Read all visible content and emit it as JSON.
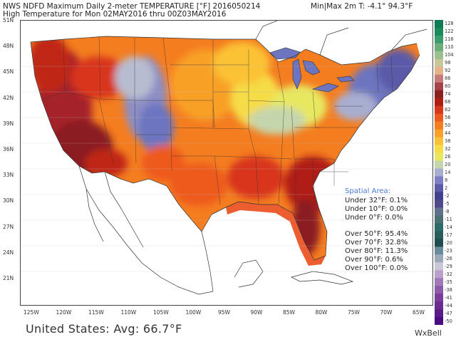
{
  "header": {
    "line1": "NWS NDFD Maximum Daily 2-meter TEMPERATURE [°F]  2016050214",
    "line2": "High Temperature for Mon 02MAY2016 thru 00Z03MAY2016",
    "minmax": "Min|Max 2m T:  -4.1°    94.3°F"
  },
  "lat_labels": [
    "51N",
    "48N",
    "45N",
    "42N",
    "39N",
    "36N",
    "33N",
    "30N",
    "27N",
    "24N",
    "21N"
  ],
  "lon_labels": [
    "125W",
    "120W",
    "115W",
    "110W",
    "105W",
    "100W",
    "95W",
    "90W",
    "85W",
    "80W",
    "75W",
    "70W",
    "65W"
  ],
  "colorbar": {
    "labels": [
      "128",
      "122",
      "116",
      "110",
      "104",
      "98",
      "92",
      "86",
      "80",
      "74",
      "68",
      "62",
      "56",
      "50",
      "44",
      "38",
      "32",
      "26",
      "20",
      "14",
      "8",
      "2",
      "-2",
      "-5",
      "-8",
      "-11",
      "-14",
      "-17",
      "-20",
      "-23",
      "-26",
      "-29",
      "-32",
      "-35",
      "-38",
      "-41",
      "-44",
      "-47",
      "-50"
    ],
    "colors": [
      "#0f7a53",
      "#1a8a5b",
      "#3b9c6c",
      "#6aae7c",
      "#9bbf8e",
      "#c9c79a",
      "#e3b38a",
      "#c97b7b",
      "#a6424a",
      "#8a2020",
      "#b01e12",
      "#d8361b",
      "#ee5a1d",
      "#f47d20",
      "#f8a028",
      "#fbc236",
      "#f6dc46",
      "#e8e860",
      "#c6d6ac",
      "#a8aed0",
      "#7c80c2",
      "#5a5aa8",
      "#41408e",
      "#504a8c",
      "#606f8c",
      "#4a7070",
      "#2f6a6a",
      "#2a5c5c",
      "#214c50",
      "#6a8a9a",
      "#9aa8b8",
      "#c8c8d8",
      "#b8a0c8",
      "#a078b8",
      "#8a5aa8",
      "#7a3c98",
      "#6a2a90",
      "#5a1a88",
      "#4a0c80"
    ]
  },
  "spatial": {
    "title": "Spatial Area:",
    "under": [
      "Under 32°F: 0.1%",
      "Under 10°F: 0.0%",
      "Under 0°F: 0.0%"
    ],
    "over": [
      "Over 50°F: 95.4%",
      "Over 70°F: 32.8%",
      "Over 80°F: 11.3%",
      "Over 90°F: 0.6%",
      "Over 100°F: 0.0%"
    ]
  },
  "average": "United States: Avg: 66.7°F",
  "brand": "WxBell",
  "palette": {
    "hot": "#d8361b",
    "very_hot": "#a6222a",
    "warm": "#f47d20",
    "mild": "#f8a028",
    "yellow": "#f6dc46",
    "pale": "#e8e860",
    "cool": "#b8bcd0",
    "cold": "#6d74c0",
    "ocean_hot": "#ea4b1a"
  }
}
